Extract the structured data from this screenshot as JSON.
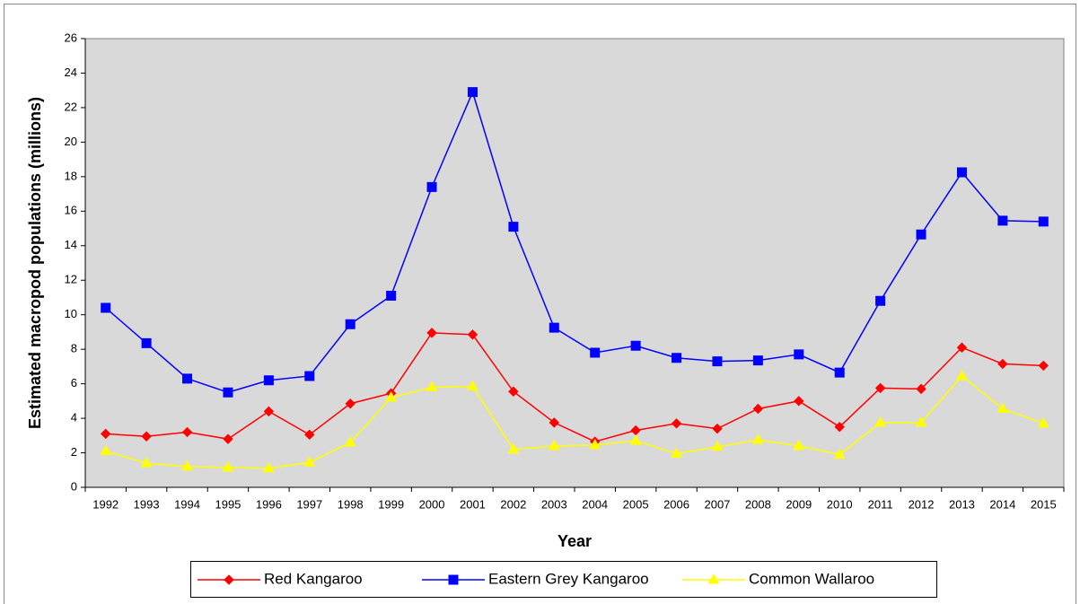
{
  "chart_data": {
    "type": "line",
    "x_label": "Year",
    "y_label": "Estimated macropod populations (millions)",
    "categories": [
      "1992",
      "1993",
      "1994",
      "1995",
      "1996",
      "1997",
      "1998",
      "1999",
      "2000",
      "2001",
      "2002",
      "2003",
      "2004",
      "2005",
      "2006",
      "2007",
      "2008",
      "2009",
      "2010",
      "2011",
      "2012",
      "2013",
      "2014",
      "2015"
    ],
    "series": [
      {
        "name": "Red Kangaroo",
        "color": "#ff0000",
        "marker": "diamond",
        "values": [
          3.1,
          2.95,
          3.2,
          2.8,
          4.4,
          3.05,
          4.85,
          5.45,
          8.95,
          8.85,
          5.55,
          3.75,
          2.65,
          3.3,
          3.7,
          3.4,
          4.55,
          5.0,
          3.5,
          5.75,
          5.7,
          8.1,
          7.15,
          7.05
        ]
      },
      {
        "name": "Eastern Grey Kangaroo",
        "color": "#0000ff",
        "marker": "square",
        "values": [
          10.4,
          8.35,
          6.3,
          5.5,
          6.2,
          6.45,
          9.45,
          11.1,
          17.4,
          22.9,
          15.1,
          9.25,
          7.8,
          8.2,
          7.5,
          7.3,
          7.35,
          7.7,
          6.65,
          10.8,
          14.65,
          18.25,
          15.45,
          15.4
        ]
      },
      {
        "name": "Common Wallaroo",
        "color": "#ffff00",
        "marker": "triangle",
        "values": [
          2.1,
          1.4,
          1.2,
          1.15,
          1.1,
          1.45,
          2.6,
          5.2,
          5.8,
          5.85,
          2.2,
          2.4,
          2.45,
          2.7,
          1.95,
          2.35,
          2.75,
          2.4,
          1.9,
          3.75,
          3.75,
          6.45,
          4.55,
          3.7
        ]
      }
    ],
    "ylim": [
      0,
      26
    ],
    "yticks": [
      0,
      2,
      4,
      6,
      8,
      10,
      12,
      14,
      16,
      18,
      20,
      22,
      24,
      26
    ],
    "plot_background": "#d9d9d9",
    "legend": "bottom"
  }
}
